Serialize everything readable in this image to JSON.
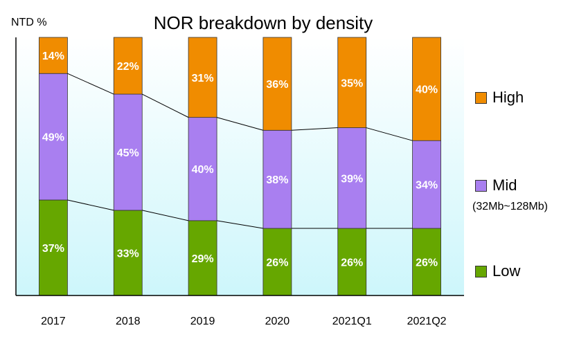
{
  "chart_data": {
    "type": "bar",
    "stacked": true,
    "title": "NOR breakdown by density",
    "ylabel": "NTD %",
    "categories": [
      "2017",
      "2018",
      "2019",
      "2020",
      "2021Q1",
      "2021Q2"
    ],
    "series": [
      {
        "name": "Low",
        "values": [
          37,
          33,
          29,
          26,
          26,
          26
        ],
        "color": "#66a700"
      },
      {
        "name": "Mid",
        "values": [
          49,
          45,
          40,
          38,
          39,
          34
        ],
        "color": "#a97ff0"
      },
      {
        "name": "High",
        "values": [
          14,
          22,
          31,
          36,
          35,
          40
        ],
        "color": "#f08c00"
      }
    ],
    "ylim": [
      0,
      100
    ],
    "legend_position": "right",
    "grid": false,
    "legend_sub": "(32Mb~128Mb)",
    "background_gradient": [
      "#ffffff",
      "#cdf6fb"
    ]
  }
}
